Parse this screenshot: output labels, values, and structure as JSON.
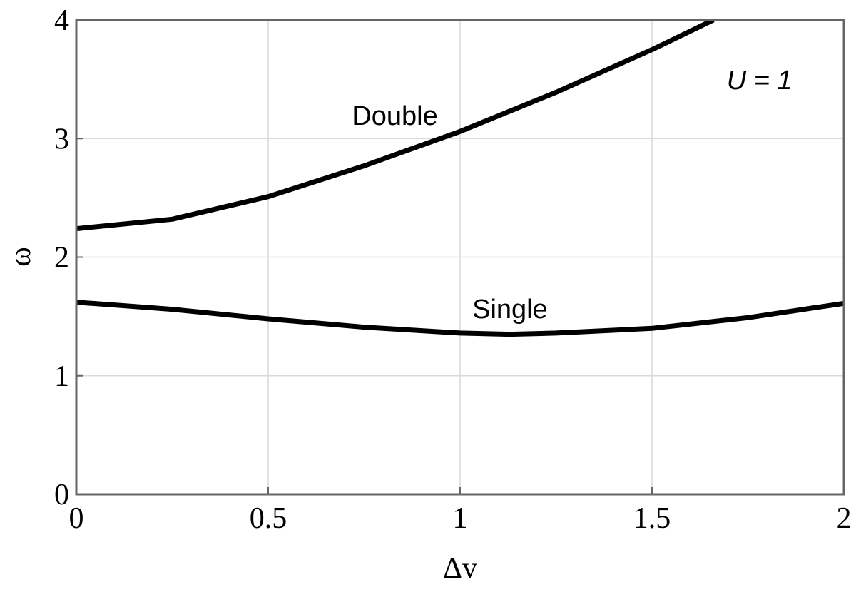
{
  "chart_data": {
    "type": "line",
    "x_label": "Δv",
    "y_label": "ω",
    "annotations": [
      {
        "text": "Double",
        "x": 0.83,
        "y": 3.2
      },
      {
        "text": "Single",
        "x": 1.13,
        "y": 1.57
      },
      {
        "text": "U = 1",
        "x": 1.78,
        "y": 3.5
      }
    ],
    "series": [
      {
        "name": "Double",
        "color": "#000000",
        "x": [
          0,
          0.25,
          0.5,
          0.75,
          1,
          1.25,
          1.5,
          1.66
        ],
        "values": [
          2.24,
          2.32,
          2.51,
          2.77,
          3.06,
          3.39,
          3.75,
          4.0
        ]
      },
      {
        "name": "Single",
        "color": "#000000",
        "x": [
          0,
          0.25,
          0.5,
          0.75,
          1,
          1.13,
          1.25,
          1.5,
          1.75,
          2
        ],
        "values": [
          1.62,
          1.56,
          1.48,
          1.41,
          1.36,
          1.35,
          1.36,
          1.4,
          1.49,
          1.61
        ]
      }
    ],
    "xlim": [
      0,
      2
    ],
    "ylim": [
      0,
      4
    ],
    "xticks": [
      0,
      0.5,
      1,
      1.5,
      2
    ],
    "yticks": [
      0,
      1,
      2,
      3,
      4
    ],
    "grid": true
  }
}
